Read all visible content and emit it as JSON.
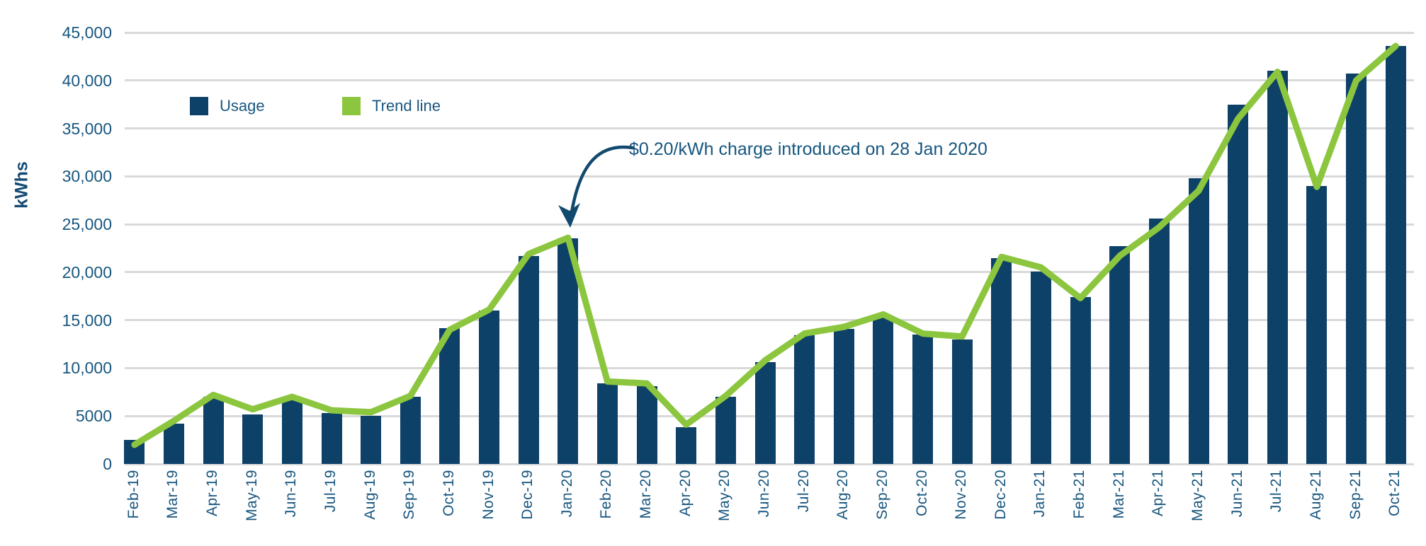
{
  "chart_data": {
    "type": "bar",
    "title": "",
    "ylabel": "kWhs",
    "xlabel": "",
    "categories": [
      "Feb-19",
      "Mar-19",
      "Apr-19",
      "May-19",
      "Jun-19",
      "Jul-19",
      "Aug-19",
      "Sep-19",
      "Oct-19",
      "Nov-19",
      "Dec-19",
      "Jan-20",
      "Feb-20",
      "Mar-20",
      "Apr-20",
      "May-20",
      "Jun-20",
      "Jul-20",
      "Aug-20",
      "Sep-20",
      "Oct-20",
      "Nov-20",
      "Dec-20",
      "Jan-21",
      "Feb-21",
      "Mar-21",
      "Apr-21",
      "May-21",
      "Jun-21",
      "Jul-21",
      "Aug-21",
      "Sep-21",
      "Oct-21"
    ],
    "series": [
      {
        "name": "Usage",
        "type": "bar",
        "color": "#0d4168",
        "values": [
          2500,
          4200,
          7000,
          5200,
          6800,
          5300,
          5000,
          7000,
          14200,
          16000,
          21700,
          23500,
          8400,
          8100,
          3800,
          7000,
          10600,
          13400,
          14100,
          15500,
          13500,
          13000,
          21500,
          20100,
          17400,
          22700,
          25600,
          29800,
          37500,
          41000,
          29000,
          40700,
          43600
        ]
      },
      {
        "name": "Trend line",
        "type": "line",
        "color": "#8cc63f",
        "values": [
          2000,
          4500,
          7200,
          5700,
          7000,
          5600,
          5400,
          7100,
          14000,
          16100,
          21900,
          23600,
          8600,
          8400,
          4100,
          7100,
          10800,
          13600,
          14300,
          15600,
          13600,
          13300,
          21600,
          20500,
          17300,
          21700,
          24700,
          28500,
          36000,
          40900,
          28900,
          40000,
          43600
        ]
      }
    ],
    "ylim": [
      0,
      45000
    ],
    "ytick_values": [
      45000,
      40000,
      35000,
      30000,
      25000,
      20000,
      15000,
      10000,
      5000,
      0
    ],
    "ytick_labels": [
      "45,000",
      "40,000",
      "35,000",
      "30,000",
      "25,000",
      "20,000",
      "15,000",
      "10,000",
      "5000",
      "0"
    ],
    "grid": "horizontal",
    "legend_position": "top-left",
    "annotation": "$0.20/kWh charge introduced on 28 Jan 2020"
  },
  "legend": {
    "usage_label": "Usage",
    "trend_label": "Trend line"
  },
  "axis": {
    "y_title": "kWhs"
  },
  "annotation": {
    "text": "$0.20/kWh charge introduced on 28 Jan 2020"
  },
  "colors": {
    "bar": "#0d4168",
    "trend": "#8cc63f",
    "grid": "#d9d9d9",
    "text": "#17567f",
    "arrow": "#12496e",
    "background": "#ffffff"
  }
}
